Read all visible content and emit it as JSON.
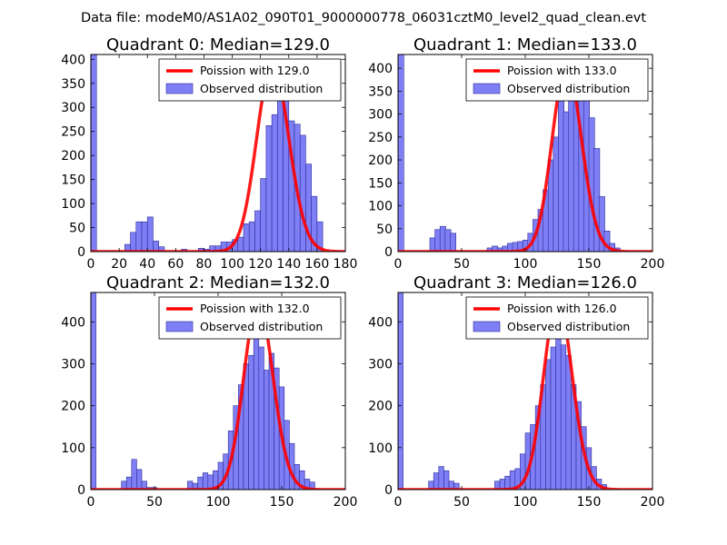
{
  "figure": {
    "suptitle": "Data file: modeM0/AS1A02_090T01_9000000778_06031cztM0_level2_quad_clean.evt"
  },
  "colors": {
    "bars_fill": "#7f7ff5",
    "bars_edge": "#2b2b9a",
    "poisson_line": "#ff0000"
  },
  "chart_data": [
    {
      "type": "bar",
      "title": "Quadrant 0: Median=129.0",
      "xlim": [
        0,
        180
      ],
      "ylim": [
        0,
        410
      ],
      "xticks": [
        0,
        20,
        40,
        60,
        80,
        100,
        120,
        140,
        160,
        180
      ],
      "yticks": [
        0,
        50,
        100,
        150,
        200,
        250,
        300,
        350,
        400
      ],
      "legend": {
        "placement": "top-right",
        "line_label": "Poission with 129.0",
        "bar_label": "Observed distribution"
      },
      "histogram": {
        "bin_width": 4,
        "bins": [
          [
            0,
            410
          ],
          [
            24,
            15
          ],
          [
            28,
            40
          ],
          [
            32,
            62
          ],
          [
            36,
            62
          ],
          [
            40,
            72
          ],
          [
            44,
            22
          ],
          [
            48,
            10
          ],
          [
            64,
            5
          ],
          [
            76,
            7
          ],
          [
            80,
            5
          ],
          [
            84,
            12
          ],
          [
            88,
            12
          ],
          [
            92,
            20
          ],
          [
            96,
            20
          ],
          [
            100,
            25
          ],
          [
            104,
            30
          ],
          [
            108,
            58
          ],
          [
            112,
            62
          ],
          [
            116,
            85
          ],
          [
            120,
            152
          ],
          [
            124,
            262
          ],
          [
            128,
            285
          ],
          [
            132,
            315
          ],
          [
            136,
            330
          ],
          [
            140,
            272
          ],
          [
            144,
            265
          ],
          [
            148,
            242
          ],
          [
            152,
            182
          ],
          [
            156,
            115
          ],
          [
            160,
            62
          ]
        ]
      },
      "poisson": {
        "mean": 129.0,
        "peak": 390
      }
    },
    {
      "type": "bar",
      "title": "Quadrant 1: Median=133.0",
      "xlim": [
        0,
        200
      ],
      "ylim": [
        0,
        430
      ],
      "xticks": [
        0,
        50,
        100,
        150,
        200
      ],
      "yticks": [
        0,
        50,
        100,
        150,
        200,
        250,
        300,
        350,
        400
      ],
      "legend": {
        "placement": "top-right",
        "line_label": "Poission with 133.0",
        "bar_label": "Observed distribution"
      },
      "histogram": {
        "bin_width": 4.5,
        "bins": [
          [
            0,
            430
          ],
          [
            25,
            30
          ],
          [
            29,
            48
          ],
          [
            33,
            55
          ],
          [
            37,
            48
          ],
          [
            41,
            40
          ],
          [
            70,
            8
          ],
          [
            74,
            12
          ],
          [
            78,
            8
          ],
          [
            82,
            12
          ],
          [
            86,
            18
          ],
          [
            90,
            20
          ],
          [
            94,
            22
          ],
          [
            98,
            25
          ],
          [
            102,
            40
          ],
          [
            106,
            70
          ],
          [
            110,
            92
          ],
          [
            114,
            135
          ],
          [
            118,
            200
          ],
          [
            122,
            250
          ],
          [
            126,
            330
          ],
          [
            130,
            305
          ],
          [
            134,
            365
          ],
          [
            138,
            380
          ],
          [
            142,
            358
          ],
          [
            146,
            335
          ],
          [
            150,
            292
          ],
          [
            154,
            225
          ],
          [
            158,
            120
          ],
          [
            162,
            45
          ],
          [
            166,
            18
          ],
          [
            170,
            8
          ]
        ]
      },
      "poisson": {
        "mean": 133.0,
        "peak": 405
      }
    },
    {
      "type": "bar",
      "title": "Quadrant 2: Median=132.0",
      "xlim": [
        0,
        200
      ],
      "ylim": [
        0,
        470
      ],
      "xticks": [
        0,
        50,
        100,
        150,
        200
      ],
      "yticks": [
        0,
        100,
        200,
        300,
        400
      ],
      "legend": {
        "placement": "top-right",
        "line_label": "Poission with 132.0",
        "bar_label": "Observed distribution"
      },
      "histogram": {
        "bin_width": 4,
        "bins": [
          [
            0,
            470
          ],
          [
            24,
            20
          ],
          [
            28,
            30
          ],
          [
            32,
            72
          ],
          [
            36,
            48
          ],
          [
            40,
            20
          ],
          [
            44,
            5
          ],
          [
            48,
            5
          ],
          [
            76,
            20
          ],
          [
            80,
            15
          ],
          [
            84,
            30
          ],
          [
            88,
            40
          ],
          [
            92,
            35
          ],
          [
            96,
            45
          ],
          [
            100,
            65
          ],
          [
            104,
            85
          ],
          [
            108,
            140
          ],
          [
            112,
            200
          ],
          [
            116,
            250
          ],
          [
            120,
            300
          ],
          [
            124,
            320
          ],
          [
            128,
            360
          ],
          [
            132,
            340
          ],
          [
            136,
            285
          ],
          [
            140,
            325
          ],
          [
            144,
            290
          ],
          [
            148,
            245
          ],
          [
            152,
            165
          ],
          [
            156,
            110
          ],
          [
            160,
            60
          ],
          [
            164,
            45
          ],
          [
            168,
            25
          ],
          [
            172,
            18
          ]
        ]
      },
      "poisson": {
        "mean": 132.0,
        "peak": 445
      }
    },
    {
      "type": "bar",
      "title": "Quadrant 3: Median=126.0",
      "xlim": [
        0,
        200
      ],
      "ylim": [
        0,
        470
      ],
      "xticks": [
        0,
        50,
        100,
        150,
        200
      ],
      "yticks": [
        0,
        100,
        200,
        300,
        400
      ],
      "legend": {
        "placement": "top-right",
        "line_label": "Poission with 126.0",
        "bar_label": "Observed distribution"
      },
      "histogram": {
        "bin_width": 4,
        "bins": [
          [
            0,
            470
          ],
          [
            24,
            20
          ],
          [
            28,
            40
          ],
          [
            32,
            55
          ],
          [
            36,
            45
          ],
          [
            40,
            20
          ],
          [
            44,
            15
          ],
          [
            76,
            20
          ],
          [
            80,
            25
          ],
          [
            84,
            32
          ],
          [
            88,
            45
          ],
          [
            92,
            50
          ],
          [
            96,
            85
          ],
          [
            100,
            135
          ],
          [
            104,
            155
          ],
          [
            108,
            200
          ],
          [
            112,
            250
          ],
          [
            116,
            310
          ],
          [
            120,
            340
          ],
          [
            124,
            380
          ],
          [
            128,
            345
          ],
          [
            132,
            320
          ],
          [
            136,
            250
          ],
          [
            140,
            210
          ],
          [
            144,
            150
          ],
          [
            148,
            100
          ],
          [
            152,
            55
          ],
          [
            156,
            25
          ],
          [
            160,
            12
          ]
        ]
      },
      "poisson": {
        "mean": 126.0,
        "peak": 450
      }
    }
  ]
}
